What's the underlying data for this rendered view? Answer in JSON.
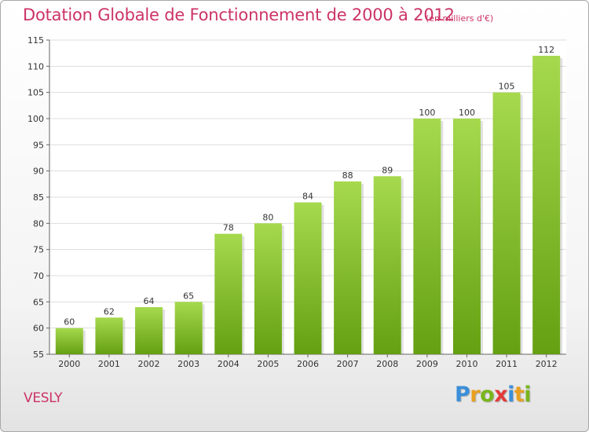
{
  "title": "Dotation Globale de Fonctionnement de 2000 à 2012",
  "subtitle": "(en milliers d'€)",
  "commune": "VESLY",
  "brand": {
    "letters": [
      "P",
      "r",
      "o",
      "x",
      "i",
      "t",
      "i"
    ],
    "colors": [
      "#3a8fd9",
      "#e8a020",
      "#7ab51d",
      "#e23a3a",
      "#3a8fd9",
      "#e8a020",
      "#7ab51d"
    ]
  },
  "colors": {
    "accent": "#cc3366",
    "bar_light": "#a6d94e",
    "bar_dark": "#64a012",
    "grid": "#dddddd"
  },
  "chart_data": {
    "type": "bar",
    "title": "Dotation Globale de Fonctionnement de 2000 à 2012",
    "subtitle": "(en milliers d'€)",
    "categories": [
      "2000",
      "2001",
      "2002",
      "2003",
      "2004",
      "2005",
      "2006",
      "2007",
      "2008",
      "2009",
      "2010",
      "2011",
      "2012"
    ],
    "values": [
      60,
      62,
      64,
      65,
      78,
      80,
      84,
      88,
      89,
      100,
      100,
      105,
      112
    ],
    "data_labels": [
      "60",
      "62",
      "64",
      "65",
      "78",
      "80",
      "84",
      "88",
      "89",
      "100",
      "100",
      "105",
      "112"
    ],
    "ylim": [
      55,
      115
    ],
    "yticks": [
      55,
      60,
      65,
      70,
      75,
      80,
      85,
      90,
      95,
      100,
      105,
      110,
      115
    ],
    "ytick_labels": [
      "55",
      "60",
      "65",
      "70",
      "75",
      "80",
      "85",
      "90",
      "95",
      "100",
      "105",
      "110",
      "115"
    ],
    "grid": true,
    "legend": "none"
  }
}
